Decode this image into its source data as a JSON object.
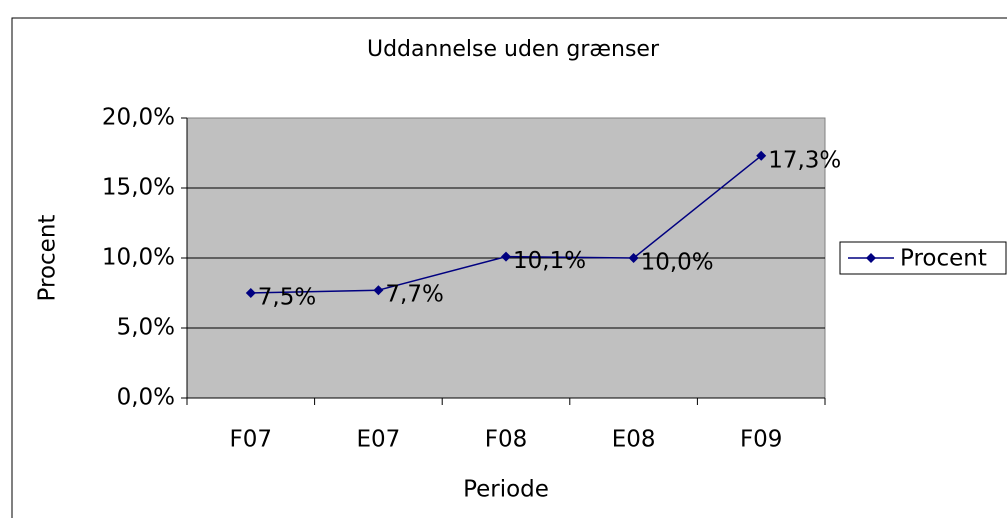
{
  "chart_data": {
    "type": "line",
    "title": "Uddannelse uden grænser",
    "x_label": "Periode",
    "y_label": "Procent",
    "categories": [
      "F07",
      "E07",
      "F08",
      "E08",
      "F09"
    ],
    "series": [
      {
        "name": "Procent",
        "color": "#000080",
        "values": [
          7.5,
          7.7,
          10.1,
          10.0,
          17.3
        ],
        "value_labels": [
          "7,5%",
          "7,7%",
          "10,1%",
          "10,0%",
          "17,3%"
        ]
      }
    ],
    "ylim": [
      0,
      20
    ],
    "yticks": [
      {
        "value": 0,
        "label": "0,0%"
      },
      {
        "value": 5,
        "label": "5,0%"
      },
      {
        "value": 10,
        "label": "10,0%"
      },
      {
        "value": 15,
        "label": "15,0%"
      },
      {
        "value": 20,
        "label": "20,0%"
      }
    ],
    "grid": true,
    "legend": "right"
  }
}
